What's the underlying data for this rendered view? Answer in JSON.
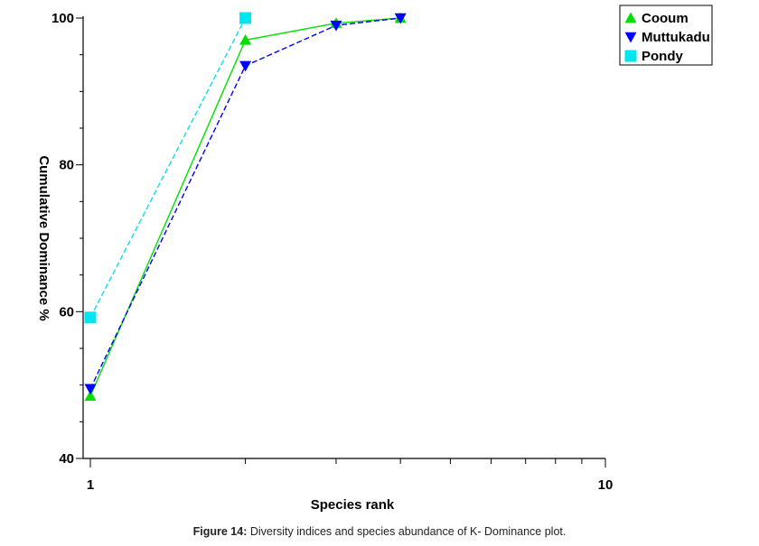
{
  "chart_data": {
    "type": "line",
    "xlabel": "Species rank",
    "ylabel": "Cumulative Dominance %",
    "xscale": "log",
    "xlim": [
      1,
      10
    ],
    "ylim": [
      40,
      100
    ],
    "xticks": [
      1,
      10
    ],
    "yticks": [
      40,
      60,
      80,
      100
    ],
    "legend_position": "top-right",
    "grid": false,
    "series": [
      {
        "name": "Cooum",
        "color": "#00e000",
        "marker": "triangle-up",
        "linestyle": "solid",
        "x": [
          1,
          2,
          3,
          4
        ],
        "y": [
          48.5,
          97,
          99.3,
          100
        ]
      },
      {
        "name": "Muttukadu",
        "color": "#0000ff",
        "marker": "triangle-down",
        "linestyle": "dashed",
        "x": [
          1,
          2,
          3,
          4
        ],
        "y": [
          49.5,
          93.5,
          99,
          100
        ]
      },
      {
        "name": "Pondy",
        "color": "#00e5ee",
        "marker": "square",
        "linestyle": "dashed",
        "x": [
          1,
          2
        ],
        "y": [
          59.2,
          100
        ]
      }
    ]
  },
  "caption": {
    "label": "Figure 14:",
    "text": " Diversity indices and species abundance of K- Dominance plot."
  }
}
